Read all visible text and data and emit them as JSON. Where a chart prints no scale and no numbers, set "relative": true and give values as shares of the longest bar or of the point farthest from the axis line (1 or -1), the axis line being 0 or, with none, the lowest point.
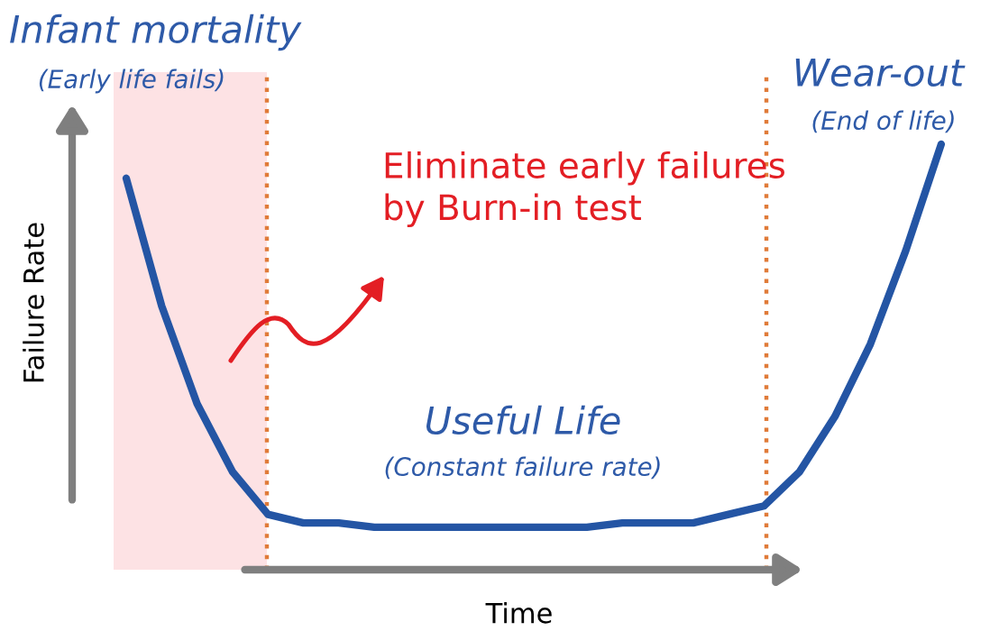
{
  "chart_data": {
    "type": "line",
    "relative": true,
    "xlabel": "Time",
    "ylabel": "Failure Rate",
    "categories": [
      null,
      null,
      null,
      null,
      null,
      null,
      null,
      null,
      null,
      null,
      null,
      null,
      null,
      null,
      null,
      null,
      null,
      null,
      null,
      null,
      null,
      null,
      null,
      null
    ],
    "series": [
      {
        "color": "#2455a4",
        "values": [
          0.92,
          0.62,
          0.39,
          0.23,
          0.13,
          0.11,
          0.11,
          0.1,
          0.1,
          0.1,
          0.1,
          0.1,
          0.1,
          0.1,
          0.11,
          0.11,
          0.11,
          0.13,
          0.15,
          0.23,
          0.36,
          0.53,
          0.75,
          1.0
        ]
      }
    ],
    "annotations": [
      "Infant mortality",
      "(Early life fails)",
      "Eliminate early failures\nby Burn-in test",
      "Useful Life",
      "(Constant failure rate)",
      "Wear-out",
      "(End of life)"
    ]
  }
}
